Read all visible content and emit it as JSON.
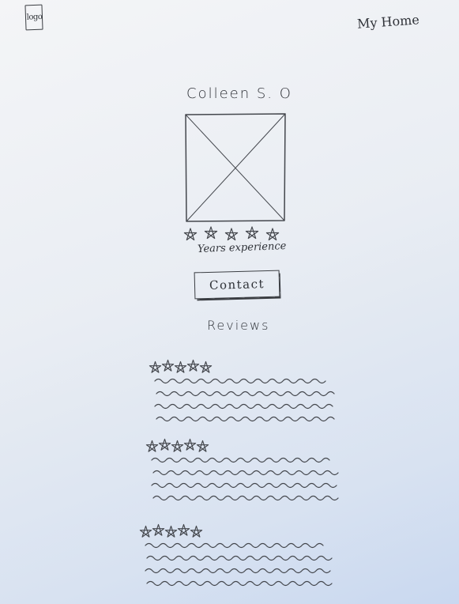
{
  "header": {
    "logo_text": "logo",
    "nav_home": "My Home"
  },
  "profile": {
    "name": "Colleen S. O",
    "photo": "image-placeholder-icon",
    "rating": {
      "value": 5,
      "max": 5
    },
    "experience_label": "Years experience",
    "contact_label": "Contact"
  },
  "reviews": {
    "heading": "Reviews",
    "items": [
      {
        "rating": 5,
        "max": 5,
        "text_lines": 4
      },
      {
        "rating": 5,
        "max": 5,
        "text_lines": 4
      },
      {
        "rating": 5,
        "max": 5,
        "text_lines": 4
      }
    ]
  }
}
